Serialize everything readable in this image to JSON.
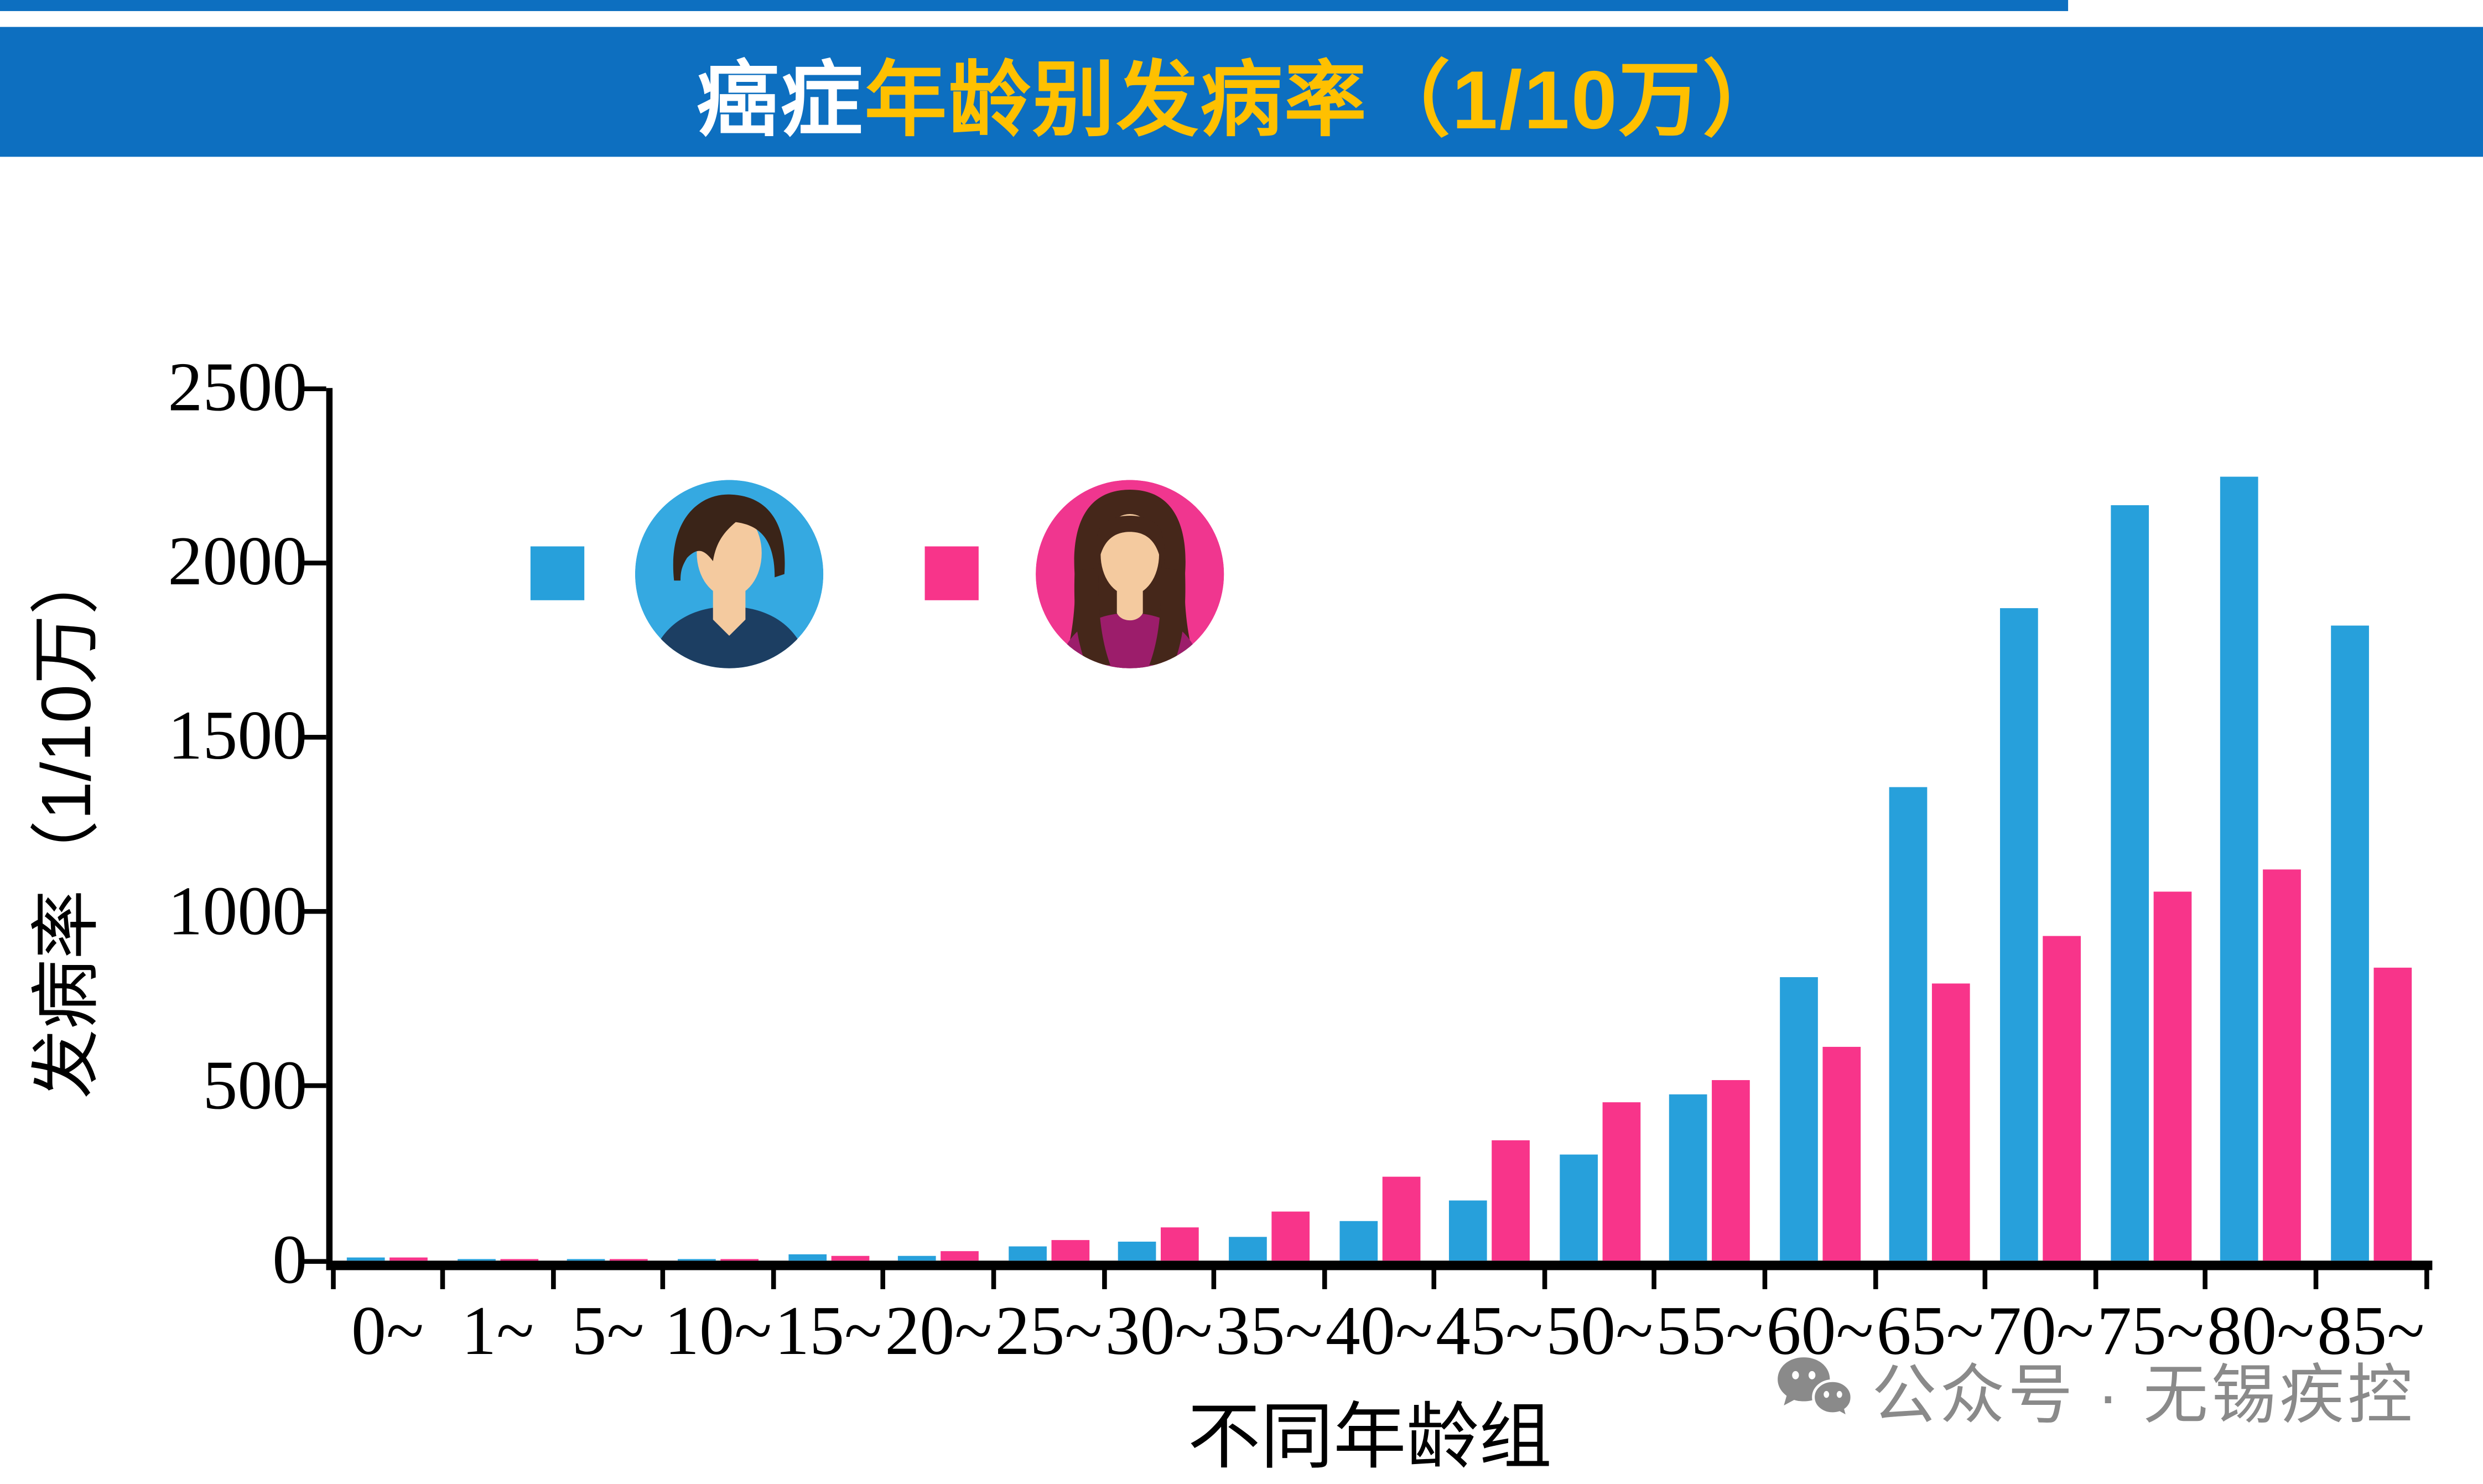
{
  "header": {
    "top_strip_color": "#0D6FC0",
    "banner_color": "#0D6FC0",
    "title_part1": "癌症",
    "title_part1_color": "#FFFFFF",
    "title_part2": "年龄别发病率（1/10万）",
    "title_part2_color": "#FFC000"
  },
  "chart_data": {
    "type": "bar",
    "title": "癌症年龄别发病率（1/10万）",
    "categories": [
      "0~",
      "1~",
      "5~",
      "10~",
      "15~",
      "20~",
      "25~",
      "30~",
      "35~",
      "40~",
      "45~",
      "50~",
      "55~",
      "60~",
      "65~",
      "70~",
      "75~",
      "80~",
      "85~"
    ],
    "series": [
      {
        "name": "男性",
        "icon": "male-avatar-icon",
        "color": "#27A0DB",
        "values": [
          10,
          6,
          2,
          3,
          17,
          14,
          42,
          55,
          68,
          115,
          174,
          305,
          477,
          812,
          1358,
          1870,
          2165,
          2245,
          1818
        ]
      },
      {
        "name": "女性",
        "icon": "female-avatar-icon",
        "color": "#F8348A",
        "values": [
          11,
          3,
          2,
          5,
          12,
          28,
          59,
          95,
          140,
          240,
          345,
          452,
          516,
          612,
          795,
          928,
          1058,
          1120,
          840
        ]
      }
    ],
    "xlabel": "不同年龄组",
    "ylabel": "发病率（1/10万）",
    "ylim": [
      0,
      2500
    ],
    "y_ticks": [
      0,
      500,
      1000,
      1500,
      2000,
      2500
    ],
    "grid": false,
    "legend_position": "top-left-inside"
  },
  "legend": {
    "male_swatch_color": "#27A0DB",
    "female_swatch_color": "#F8348A",
    "male_avatar": {
      "circle": "#35A9E1",
      "shirt": "#1C3E62",
      "hair": "#3A2418",
      "skin": "#F4CA9F"
    },
    "female_avatar": {
      "circle": "#F0368F",
      "shirt": "#9C1D6B",
      "hair": "#45271A",
      "skin": "#F4CA9F"
    }
  },
  "axis": {
    "line_color": "#000000",
    "tick_color": "#000000",
    "label_color": "#000000"
  },
  "watermark": {
    "icon": "wechat-icon",
    "text": "公众号 · 无锡疾控",
    "color": "#8A8A8A"
  }
}
